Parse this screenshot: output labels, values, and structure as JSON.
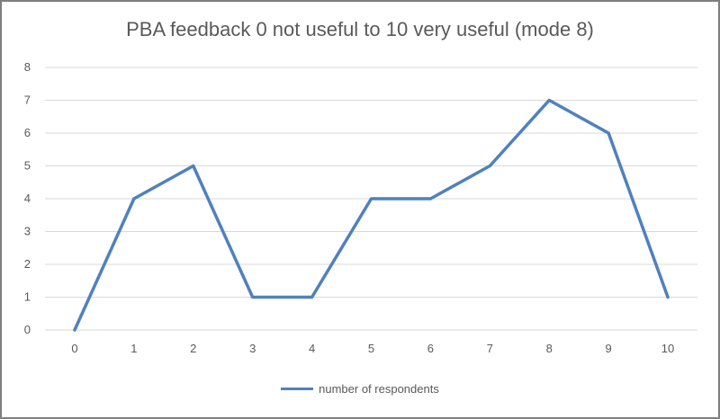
{
  "chart_data": {
    "type": "line",
    "title": "PBA feedback 0 not useful to 10 very useful (mode 8)",
    "xlabel": "",
    "ylabel": "",
    "categories": [
      "0",
      "1",
      "2",
      "3",
      "4",
      "5",
      "6",
      "7",
      "8",
      "9",
      "10"
    ],
    "series": [
      {
        "name": "number of respondents",
        "values": [
          0,
          4,
          5,
          1,
          1,
          4,
          4,
          5,
          7,
          6,
          1
        ],
        "color": "#4f81bd"
      }
    ],
    "ylim": [
      0,
      8
    ],
    "yticks": [
      "0",
      "1",
      "2",
      "3",
      "4",
      "5",
      "6",
      "7",
      "8"
    ],
    "grid": true,
    "legend_position": "bottom"
  },
  "colors": {
    "gridline": "#d9d9d9",
    "axis": "#d9d9d9",
    "text": "#595959",
    "frame": "#7f7f7f"
  }
}
